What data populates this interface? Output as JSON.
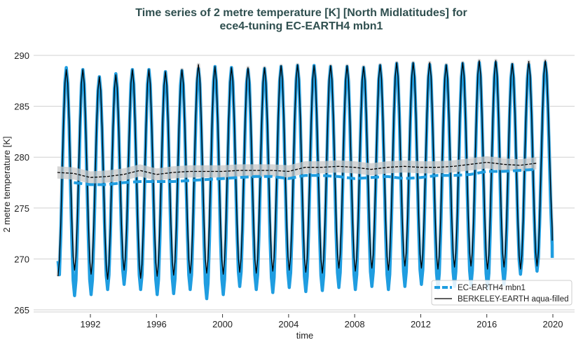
{
  "chart_data": {
    "type": "line",
    "title": [
      "Time series of 2 metre temperature [K] [North Midlatitudes] for",
      "ece4-tuning EC-EARTH4 mbn1"
    ],
    "xlabel": "time",
    "ylabel": "2 metre temperature [K]",
    "xlim": [
      1988.5,
      2021.3
    ],
    "ylim": [
      265,
      290.5
    ],
    "xticks": [
      1992,
      1996,
      2000,
      2004,
      2008,
      2012,
      2016,
      2020
    ],
    "yticks": [
      265,
      270,
      275,
      280,
      285,
      290
    ],
    "grid": "horizontal",
    "legend_position": "bottom-right",
    "colors": {
      "model": "#1f9de0",
      "obs": "#000000",
      "band": "#c8c8c8",
      "grid": "#d0d0d0"
    },
    "series": [
      {
        "name": "EC-EARTH4 mbn1",
        "start_year": 1990,
        "annual_max": [
          288.8,
          288.6,
          287.9,
          288.2,
          288.6,
          288.6,
          288.4,
          288.5,
          288.7,
          288.9,
          288.8,
          288.6,
          288.7,
          288.9,
          289.0,
          289.0,
          288.9,
          288.9,
          288.8,
          289.0,
          289.2,
          289.2,
          289.1,
          289.0,
          289.2,
          289.3,
          289.3,
          289.1,
          289.1,
          289.3
        ],
        "annual_min": [
          267.0,
          266.4,
          266.5,
          267.0,
          267.5,
          267.0,
          266.5,
          266.6,
          267.0,
          266.1,
          266.5,
          267.3,
          267.0,
          266.7,
          267.2,
          266.8,
          266.9,
          267.2,
          267.0,
          267.3,
          267.0,
          267.3,
          267.5,
          267.1,
          267.3,
          267.4,
          267.1,
          267.5,
          268.5,
          268.8
        ],
        "running_mean_years": [
          1991,
          1992,
          1993,
          1994,
          1995,
          1996,
          1997,
          1998,
          1999,
          2000,
          2001,
          2002,
          2003,
          2004,
          2005,
          2006,
          2007,
          2008,
          2009,
          2010,
          2011,
          2012,
          2013,
          2014,
          2015,
          2016,
          2017,
          2018,
          2019
        ],
        "running_mean": [
          277.5,
          277.3,
          277.3,
          277.5,
          277.6,
          277.6,
          277.6,
          277.7,
          277.8,
          277.9,
          278.0,
          278.1,
          278.1,
          277.9,
          278.2,
          278.2,
          278.1,
          277.9,
          278.0,
          278.1,
          277.9,
          278.0,
          278.2,
          278.2,
          278.3,
          278.6,
          278.6,
          278.7,
          278.8
        ],
        "final_value": 270.1
      },
      {
        "name": "BERKELEY-EARTH aqua-filled",
        "start_year": 1990,
        "start_value": 268.3,
        "annual_max": [
          288.6,
          288.6,
          287.9,
          288.1,
          288.6,
          288.6,
          288.4,
          288.6,
          289.1,
          288.9,
          288.8,
          288.8,
          288.8,
          289.0,
          289.1,
          289.0,
          289.0,
          289.0,
          288.9,
          289.1,
          289.3,
          289.3,
          289.3,
          289.1,
          289.3,
          289.5,
          289.5,
          289.2,
          289.4,
          289.5
        ],
        "annual_min": [
          268.5,
          268.9,
          268.5,
          268.0,
          268.9,
          268.1,
          268.3,
          268.4,
          268.6,
          268.6,
          268.5,
          268.7,
          268.6,
          268.8,
          268.9,
          268.7,
          268.6,
          269.1,
          268.8,
          269.1,
          268.9,
          269.3,
          269.1,
          269.0,
          269.2,
          269.3,
          269.0,
          269.2,
          269.0,
          269.3
        ],
        "running_mean_years": [
          1990,
          1991,
          1992,
          1993,
          1994,
          1995,
          1996,
          1997,
          1998,
          1999,
          2000,
          2001,
          2002,
          2003,
          2004,
          2005,
          2006,
          2007,
          2008,
          2009,
          2010,
          2011,
          2012,
          2013,
          2014,
          2015,
          2016,
          2017,
          2018,
          2019
        ],
        "running_mean": [
          278.5,
          278.4,
          278.0,
          278.1,
          278.3,
          278.7,
          278.3,
          278.5,
          278.6,
          278.6,
          278.6,
          278.7,
          278.7,
          278.7,
          278.6,
          279.0,
          279.0,
          279.1,
          279.0,
          278.8,
          279.0,
          279.1,
          279.0,
          279.0,
          279.1,
          279.3,
          279.5,
          279.3,
          279.2,
          279.4
        ],
        "band_halfwidth": 0.6,
        "final_value": 271.8
      }
    ]
  }
}
